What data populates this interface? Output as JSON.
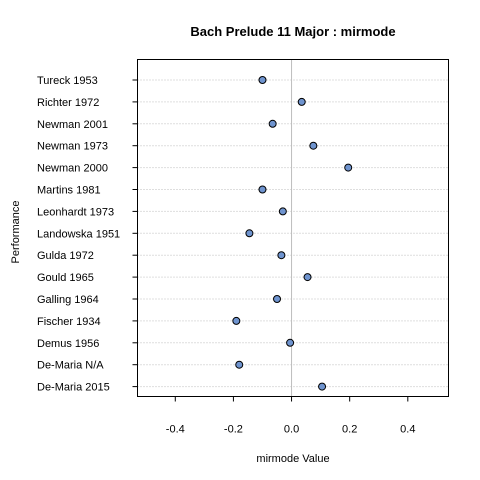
{
  "chart_data": {
    "type": "scatter",
    "title": "Bach Prelude 11 Major : mirmode",
    "xlabel": "mirmode Value",
    "ylabel": "Performance",
    "xlim": [
      -0.53,
      0.54
    ],
    "xticks": [
      -0.4,
      -0.2,
      0.0,
      0.2,
      0.4
    ],
    "xtick_labels": [
      "-0.4",
      "-0.2",
      "0.0",
      "0.2",
      "0.4"
    ],
    "reference_line_x": 0.0,
    "grid": "horizontal-dotted",
    "point_color": "#6f94cf",
    "point_edge_color": "#000000",
    "reference_line_color": "#bebebe",
    "gridline_color": "#bebebe",
    "categories": [
      "Tureck 1953",
      "Richter 1972",
      "Newman 2001",
      "Newman 1973",
      "Newman 2000",
      "Martins 1981",
      "Leonhardt 1973",
      "Landowska 1951",
      "Gulda 1972",
      "Gould 1965",
      "Galling 1964",
      "Fischer 1934",
      "Demus 1956",
      "De-Maria N/A",
      "De-Maria 2015"
    ],
    "values": [
      -0.1,
      0.035,
      -0.065,
      0.075,
      0.195,
      -0.1,
      -0.03,
      -0.145,
      -0.035,
      0.055,
      -0.05,
      -0.19,
      -0.005,
      -0.18,
      0.105
    ]
  }
}
